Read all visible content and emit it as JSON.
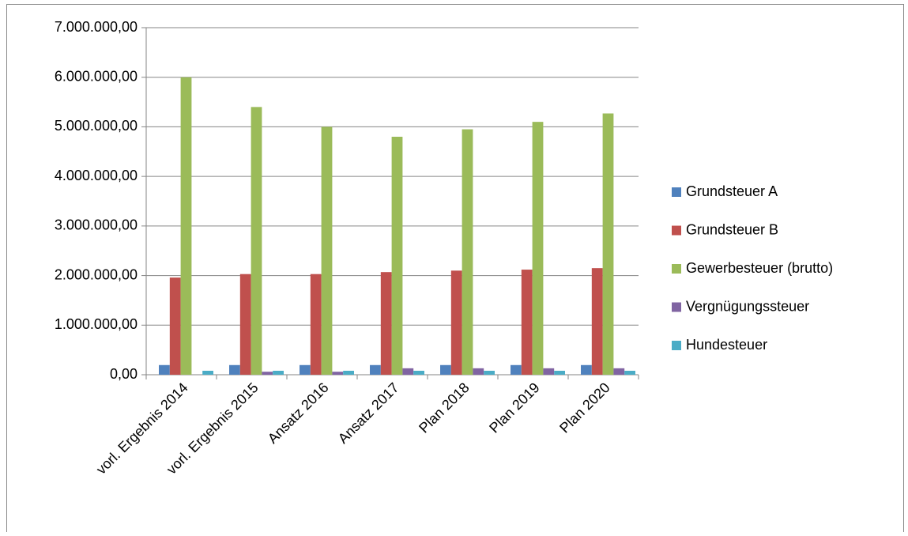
{
  "chart_data": {
    "type": "bar",
    "categories": [
      "vorl. Ergebnis 2014",
      "vorl. Ergebnis 2015",
      "Ansatz 2016",
      "Ansatz 2017",
      "Plan 2018",
      "Plan 2019",
      "Plan 2020"
    ],
    "series": [
      {
        "name": "Grundsteuer A",
        "color": "#4f81bd",
        "values": [
          195000,
          195000,
          195000,
          195000,
          195000,
          195000,
          195000
        ]
      },
      {
        "name": "Grundsteuer B",
        "color": "#c0504d",
        "values": [
          1960000,
          2030000,
          2030000,
          2070000,
          2100000,
          2120000,
          2150000
        ]
      },
      {
        "name": "Gewerbesteuer (brutto)",
        "color": "#9bbb59",
        "values": [
          6000000,
          5400000,
          5000000,
          4800000,
          4950000,
          5100000,
          5270000
        ]
      },
      {
        "name": "Vergnügungssteuer",
        "color": "#8064a2",
        "values": [
          0,
          60000,
          60000,
          130000,
          130000,
          130000,
          130000
        ]
      },
      {
        "name": "Hundesteuer",
        "color": "#4bacc6",
        "values": [
          80000,
          80000,
          80000,
          80000,
          80000,
          80000,
          80000
        ]
      }
    ],
    "ylim": [
      0,
      7000000
    ],
    "yticks": [
      {
        "value": 0,
        "label": "0,00"
      },
      {
        "value": 1000000,
        "label": "1.000.000,00"
      },
      {
        "value": 2000000,
        "label": "2.000.000,00"
      },
      {
        "value": 3000000,
        "label": "3.000.000,00"
      },
      {
        "value": 4000000,
        "label": "4.000.000,00"
      },
      {
        "value": 5000000,
        "label": "5.000.000,00"
      },
      {
        "value": 6000000,
        "label": "6.000.000,00"
      },
      {
        "value": 7000000,
        "label": "7.000.000,00"
      }
    ],
    "grid": true,
    "legend": "right"
  }
}
